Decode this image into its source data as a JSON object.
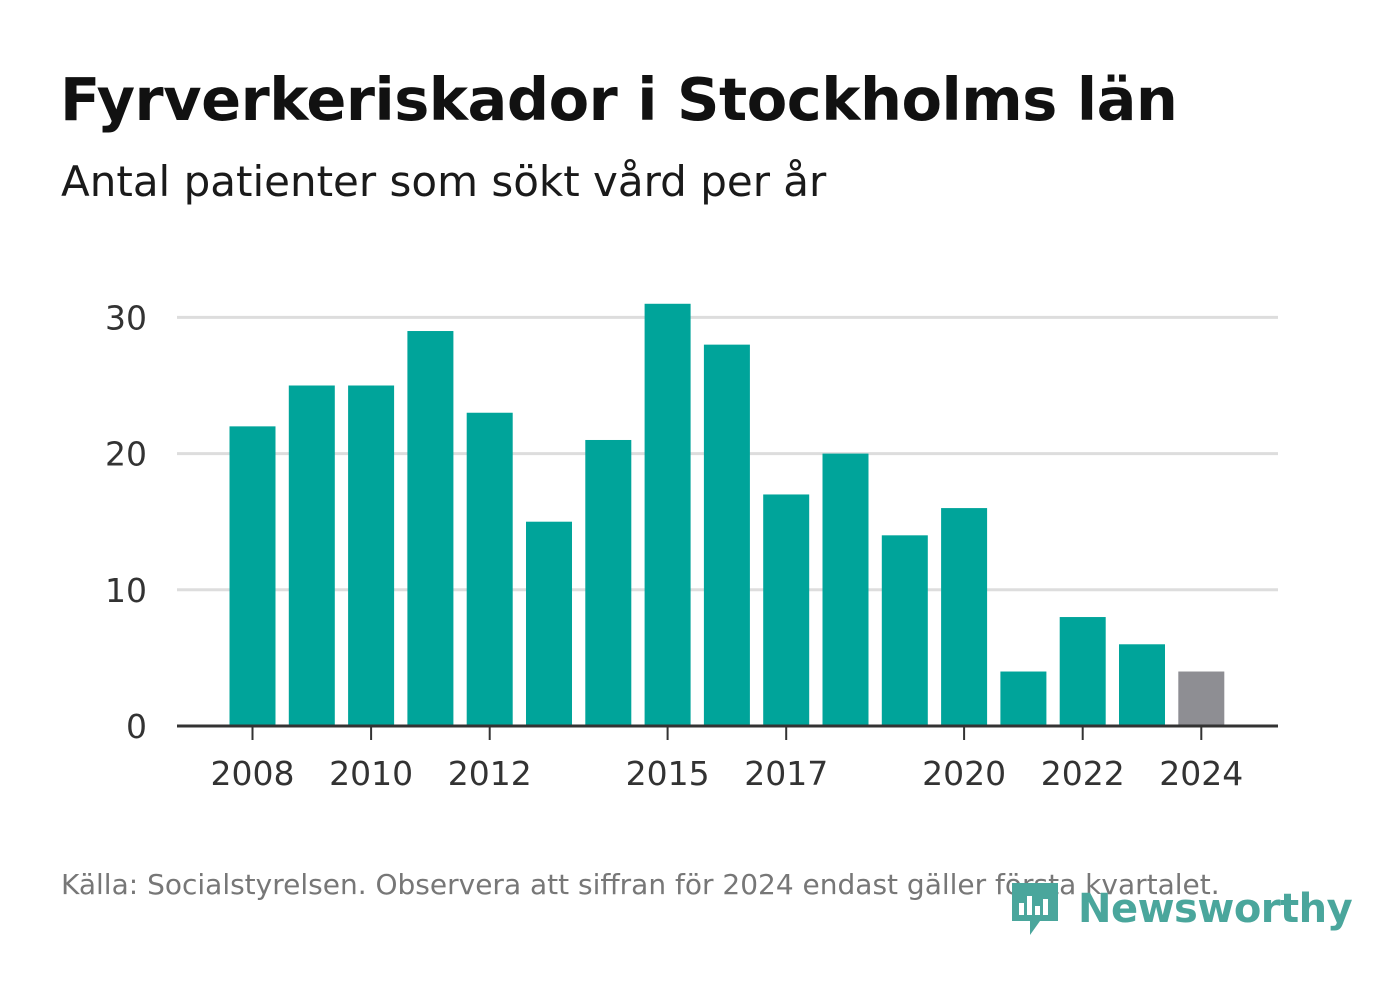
{
  "header": {
    "title": "Fyrverkeriskador i Stockholms län",
    "subtitle": "Antal patienter som sökt vård per år"
  },
  "footer": {
    "source": "Källa: Socialstyrelsen. Observera att siffran för 2024 endast gäller första kvartalet.",
    "brand": "Newsworthy",
    "brand_icon": "newsworthy-logo-icon"
  },
  "colors": {
    "bar": "#00a49a",
    "bar_partial": "#8e8e93",
    "gridline": "#dddddd",
    "axis": "#333333",
    "brand": "#4aa69c"
  },
  "chart_data": {
    "type": "bar",
    "title": "Fyrverkeriskador i Stockholms län",
    "subtitle": "Antal patienter som sökt vård per år",
    "x": [
      2008,
      2009,
      2010,
      2011,
      2012,
      2013,
      2014,
      2015,
      2016,
      2017,
      2018,
      2019,
      2020,
      2021,
      2022,
      2023,
      2024
    ],
    "values": [
      22,
      25,
      25,
      29,
      23,
      15,
      21,
      31,
      28,
      17,
      20,
      14,
      16,
      4,
      8,
      6,
      4
    ],
    "partial_year": 2024,
    "x_tick_labels": [
      "2008",
      "2010",
      "2012",
      "2015",
      "2017",
      "2020",
      "2022",
      "2024"
    ],
    "y_ticks": [
      0,
      10,
      20,
      30
    ],
    "ylim": [
      0,
      31
    ],
    "xlabel": "",
    "ylabel": "",
    "grid": true,
    "legend": "none"
  }
}
